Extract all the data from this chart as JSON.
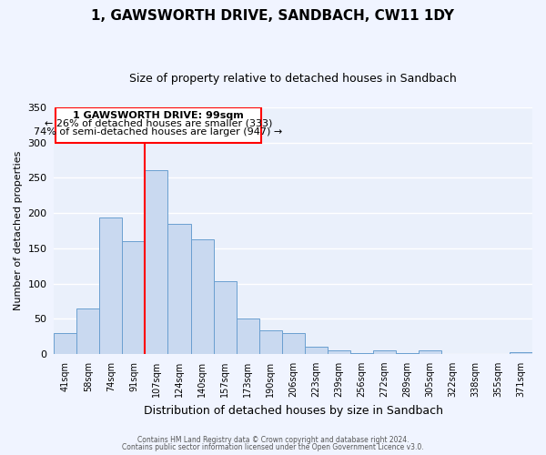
{
  "title": "1, GAWSWORTH DRIVE, SANDBACH, CW11 1DY",
  "subtitle": "Size of property relative to detached houses in Sandbach",
  "xlabel": "Distribution of detached houses by size in Sandbach",
  "ylabel": "Number of detached properties",
  "bin_labels": [
    "41sqm",
    "58sqm",
    "74sqm",
    "91sqm",
    "107sqm",
    "124sqm",
    "140sqm",
    "157sqm",
    "173sqm",
    "190sqm",
    "206sqm",
    "223sqm",
    "239sqm",
    "256sqm",
    "272sqm",
    "289sqm",
    "305sqm",
    "322sqm",
    "338sqm",
    "355sqm",
    "371sqm"
  ],
  "bar_heights": [
    30,
    65,
    193,
    160,
    261,
    184,
    163,
    103,
    50,
    33,
    30,
    11,
    5,
    1,
    5,
    1,
    5,
    0,
    0,
    0,
    2
  ],
  "bar_color": "#c9d9f0",
  "bar_edge_color": "#6a9fd0",
  "background_color": "#eaf0fb",
  "grid_color": "#ffffff",
  "marker_value": "99sqm",
  "annotation_line1": "1 GAWSWORTH DRIVE: 99sqm",
  "annotation_line2": "← 26% of detached houses are smaller (333)",
  "annotation_line3": "74% of semi-detached houses are larger (947) →",
  "footer_line1": "Contains HM Land Registry data © Crown copyright and database right 2024.",
  "footer_line2": "Contains public sector information licensed under the Open Government Licence v3.0.",
  "ylim": [
    0,
    350
  ],
  "yticks": [
    0,
    50,
    100,
    150,
    200,
    250,
    300,
    350
  ],
  "fig_bg": "#f0f4ff"
}
